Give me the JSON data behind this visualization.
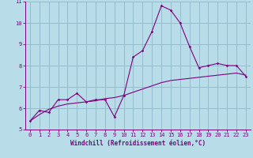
{
  "xlabel": "Windchill (Refroidissement éolien,°C)",
  "background_color": "#b8dce8",
  "grid_color": "#90b8c8",
  "line_color": "#800080",
  "x_main": [
    0,
    1,
    2,
    3,
    4,
    5,
    6,
    7,
    8,
    9,
    10,
    11,
    12,
    13,
    14,
    15,
    16,
    17,
    18,
    19,
    20,
    21,
    22,
    23
  ],
  "y_main": [
    5.4,
    5.9,
    5.8,
    6.4,
    6.4,
    6.7,
    6.3,
    6.4,
    6.4,
    5.6,
    6.6,
    8.4,
    8.7,
    9.6,
    10.8,
    10.6,
    10.0,
    8.9,
    7.9,
    8.0,
    8.1,
    8.0,
    8.0,
    7.5
  ],
  "x_smooth": [
    0,
    1,
    2,
    3,
    4,
    5,
    6,
    7,
    8,
    9,
    10,
    11,
    12,
    13,
    14,
    15,
    16,
    17,
    18,
    19,
    20,
    21,
    22,
    23
  ],
  "y_smooth": [
    5.4,
    5.7,
    5.95,
    6.1,
    6.2,
    6.25,
    6.3,
    6.35,
    6.45,
    6.5,
    6.6,
    6.75,
    6.9,
    7.05,
    7.2,
    7.3,
    7.35,
    7.4,
    7.45,
    7.5,
    7.55,
    7.6,
    7.65,
    7.55
  ],
  "ylim": [
    5,
    11
  ],
  "xlim": [
    -0.5,
    23.5
  ],
  "yticks": [
    5,
    6,
    7,
    8,
    9,
    10,
    11
  ],
  "xticks": [
    0,
    1,
    2,
    3,
    4,
    5,
    6,
    7,
    8,
    9,
    10,
    11,
    12,
    13,
    14,
    15,
    16,
    17,
    18,
    19,
    20,
    21,
    22,
    23
  ],
  "tick_fontsize": 5.0,
  "xlabel_fontsize": 5.5
}
